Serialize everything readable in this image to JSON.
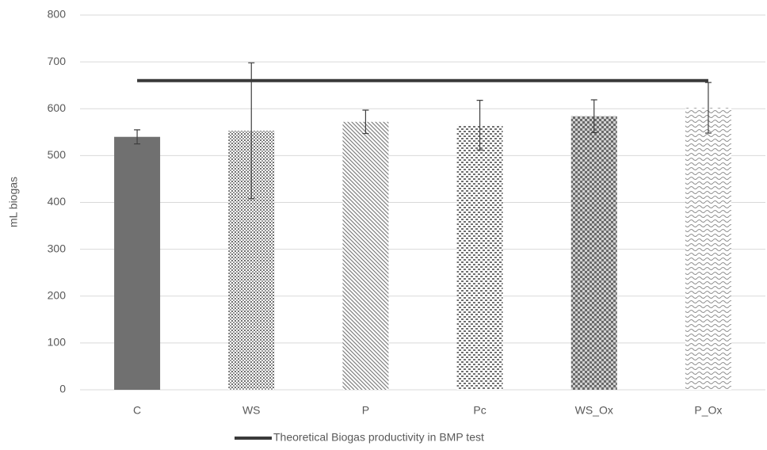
{
  "chart_data": {
    "type": "bar",
    "y_label": "mL biogas",
    "categories": [
      "C",
      "WS",
      "P",
      "Pc",
      "WS_Ox",
      "P_Ox"
    ],
    "series": [
      {
        "color": "#707070",
        "values": [
          540,
          553,
          572,
          565,
          584,
          602
        ],
        "errors": [
          15,
          145,
          25,
          53,
          35,
          54
        ]
      },
      {
        "name": "Theoretical Biogas productivity in BMP test",
        "type": "line",
        "color": "#3a3a3a",
        "values": [
          660,
          660,
          660,
          660,
          660,
          660
        ]
      }
    ],
    "ylim": [
      0,
      800
    ],
    "yticks": [
      0,
      100,
      200,
      300,
      400,
      500,
      600,
      700,
      800
    ],
    "grid": true,
    "legend": "bottom"
  }
}
